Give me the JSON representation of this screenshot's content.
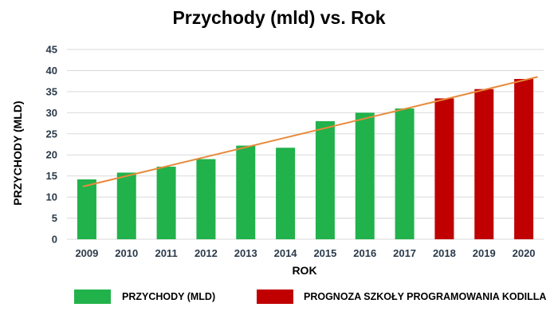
{
  "chart_data": {
    "type": "bar",
    "title": "Przychody (mld) vs. Rok",
    "xlabel": "ROK",
    "ylabel": "PRZYCHODY (MLD)",
    "ylim": [
      0,
      45
    ],
    "yticks": [
      0,
      5,
      10,
      15,
      20,
      25,
      30,
      35,
      40,
      45
    ],
    "grid": true,
    "categories": [
      "2009",
      "2010",
      "2011",
      "2012",
      "2013",
      "2014",
      "2015",
      "2016",
      "2017",
      "2018",
      "2019",
      "2020"
    ],
    "series": [
      {
        "name": "PRZYCHODY (MLD)",
        "color": "#21b24b",
        "values": [
          14.2,
          15.8,
          17.2,
          19.0,
          22.2,
          21.7,
          28.0,
          30.0,
          31.0,
          null,
          null,
          null
        ]
      },
      {
        "name": "PROGNOZA SZKOŁY PROGRAMOWANIA KODILLA",
        "color": "#c00000",
        "values": [
          null,
          null,
          null,
          null,
          null,
          null,
          null,
          null,
          null,
          33.4,
          35.6,
          38.0
        ]
      }
    ],
    "trendline": {
      "color": "#e8893a",
      "start": 12.5,
      "end": 38.5
    },
    "legend_position": "bottom"
  }
}
